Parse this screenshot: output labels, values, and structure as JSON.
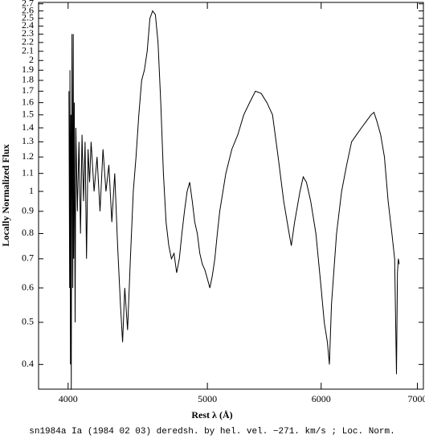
{
  "chart_data": {
    "type": "line",
    "caption": "sn1984a Ia (1984 02 03) deredsh. by hel. vel.  −271. km/s ;  Loc. Norm.",
    "xlabel": "Rest λ (Å)",
    "ylabel": "Locally Normalized Flux",
    "xscale": "log",
    "yscale": "log",
    "color": "#000000",
    "xlim": [
      3815,
      7068
    ],
    "ylim": [
      0.351,
      2.72
    ],
    "xticks": [
      4000,
      5000,
      6000,
      7000
    ],
    "yticks": [
      0.4,
      0.5,
      0.6,
      0.7,
      0.8,
      0.9,
      1,
      1.1,
      1.2,
      1.3,
      1.4,
      1.5,
      1.6,
      1.7,
      1.8,
      1.9,
      2,
      2.1,
      2.2,
      2.3,
      2.4,
      2.5,
      2.6,
      2.7
    ],
    "x": [
      4005,
      4010,
      4012,
      4015,
      4018,
      4020,
      4025,
      4030,
      4033,
      4036,
      4040,
      4045,
      4050,
      4060,
      4070,
      4080,
      4090,
      4100,
      4110,
      4120,
      4130,
      4140,
      4150,
      4170,
      4190,
      4210,
      4230,
      4250,
      4270,
      4290,
      4310,
      4330,
      4350,
      4365,
      4380,
      4400,
      4420,
      4440,
      4460,
      4480,
      4500,
      4520,
      4540,
      4560,
      4580,
      4600,
      4620,
      4640,
      4660,
      4680,
      4700,
      4720,
      4740,
      4760,
      4780,
      4800,
      4820,
      4840,
      4860,
      4880,
      4900,
      4920,
      4940,
      4960,
      4980,
      5000,
      5020,
      5040,
      5060,
      5080,
      5100,
      5150,
      5200,
      5250,
      5300,
      5350,
      5400,
      5450,
      5500,
      5550,
      5600,
      5650,
      5700,
      5720,
      5750,
      5800,
      5830,
      5860,
      5900,
      5950,
      6000,
      6030,
      6060,
      6080,
      6100,
      6150,
      6200,
      6250,
      6300,
      6350,
      6400,
      6450,
      6500,
      6530,
      6560,
      6600,
      6640,
      6680,
      6720,
      6750,
      6770,
      6780,
      6790,
      6800
    ],
    "values": [
      1.7,
      0.6,
      1.9,
      0.4,
      1.5,
      0.35,
      2.3,
      0.6,
      2.3,
      0.7,
      1.6,
      0.5,
      1.4,
      0.9,
      1.3,
      0.8,
      1.35,
      0.95,
      1.3,
      0.7,
      1.25,
      1.05,
      1.3,
      1.0,
      1.2,
      0.9,
      1.25,
      1.0,
      1.15,
      0.85,
      1.1,
      0.75,
      0.55,
      0.45,
      0.6,
      0.48,
      0.7,
      1.0,
      1.2,
      1.5,
      1.8,
      1.9,
      2.1,
      2.5,
      2.6,
      2.55,
      2.2,
      1.6,
      1.1,
      0.85,
      0.75,
      0.7,
      0.72,
      0.65,
      0.7,
      0.8,
      0.9,
      1.0,
      1.05,
      0.95,
      0.85,
      0.8,
      0.72,
      0.68,
      0.66,
      0.63,
      0.6,
      0.64,
      0.7,
      0.8,
      0.9,
      1.1,
      1.25,
      1.35,
      1.5,
      1.6,
      1.7,
      1.68,
      1.6,
      1.5,
      1.2,
      0.95,
      0.8,
      0.75,
      0.85,
      1.0,
      1.08,
      1.05,
      0.95,
      0.8,
      0.6,
      0.5,
      0.45,
      0.4,
      0.55,
      0.8,
      1.0,
      1.15,
      1.3,
      1.35,
      1.4,
      1.45,
      1.5,
      1.52,
      1.45,
      1.35,
      1.2,
      0.95,
      0.8,
      0.7,
      0.38,
      0.65,
      0.7,
      0.68
    ]
  }
}
